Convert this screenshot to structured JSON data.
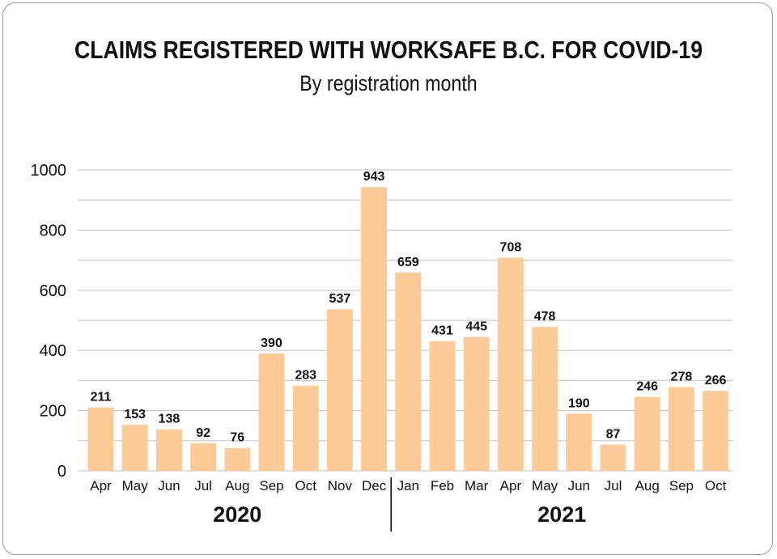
{
  "chart_data": {
    "type": "bar",
    "title": "CLAIMS REGISTERED WITH WORKSAFE B.C. FOR COVID-19",
    "subtitle": "By registration month",
    "categories": [
      "Apr",
      "May",
      "Jun",
      "Jul",
      "Aug",
      "Sep",
      "Oct",
      "Nov",
      "Dec",
      "Jan",
      "Feb",
      "Mar",
      "Apr",
      "May",
      "Jun",
      "Jul",
      "Aug",
      "Sep",
      "Oct"
    ],
    "values": [
      211,
      153,
      138,
      92,
      76,
      390,
      283,
      537,
      943,
      659,
      431,
      445,
      708,
      478,
      190,
      87,
      246,
      278,
      266
    ],
    "groups": [
      {
        "label": "2020",
        "start": 0,
        "end": 8
      },
      {
        "label": "2021",
        "start": 9,
        "end": 18
      }
    ],
    "ylim": [
      0,
      1000
    ],
    "yticks": [
      0,
      200,
      400,
      600,
      800,
      1000
    ],
    "grid": true,
    "bar_color": "#fccb98",
    "grid_color": "#c9c9c9"
  }
}
